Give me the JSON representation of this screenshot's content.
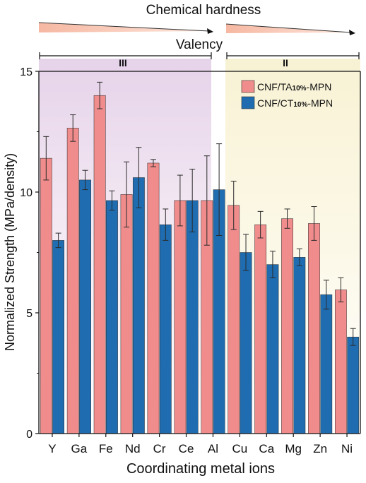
{
  "chart_data": {
    "type": "bar",
    "ylabel": "Normalized Strength (MPa/density)",
    "xlabel": "Coordinating metal ions",
    "ylim": [
      0,
      15
    ],
    "yticks": [
      0,
      5,
      10,
      15
    ],
    "categories": [
      "Y",
      "Ga",
      "Fe",
      "Nd",
      "Cr",
      "Ce",
      "Al",
      "Cu",
      "Ca",
      "Mg",
      "Zn",
      "Ni"
    ],
    "series": [
      {
        "name": "CNF/TA10%-MPN",
        "name_main": "CNF/TA",
        "name_sub": "10%",
        "name_suffix": "-MPN",
        "color": "#f08c8c",
        "values": [
          11.4,
          12.65,
          14.0,
          9.9,
          11.2,
          9.65,
          9.65,
          9.45,
          8.65,
          8.9,
          8.7,
          5.95
        ],
        "errors": [
          0.9,
          0.55,
          0.55,
          1.35,
          0.15,
          1.05,
          1.85,
          1.0,
          0.55,
          0.4,
          0.7,
          0.5
        ]
      },
      {
        "name": "CNF/CT10%-MPN",
        "name_main": "CNF/CT",
        "name_sub": "10%",
        "name_suffix": "-MPN",
        "color": "#1f6cb0",
        "values": [
          8.0,
          10.5,
          9.65,
          10.6,
          8.65,
          9.65,
          10.1,
          7.5,
          7.0,
          7.3,
          5.75,
          4.0
        ],
        "errors": [
          0.3,
          0.4,
          0.4,
          1.25,
          0.65,
          1.3,
          1.9,
          0.75,
          0.55,
          0.35,
          0.6,
          0.35
        ]
      }
    ],
    "annotations": {
      "top_label": "Chemical hardness",
      "mid_label": "Valency",
      "groups": [
        {
          "label": "III",
          "from": "Y",
          "to": "Al",
          "color": "#ece0f0"
        },
        {
          "label": "II",
          "from": "Cu",
          "to": "Ni",
          "color": "#fbf7e4"
        }
      ]
    },
    "legend_position": "top-right",
    "grid": false
  }
}
